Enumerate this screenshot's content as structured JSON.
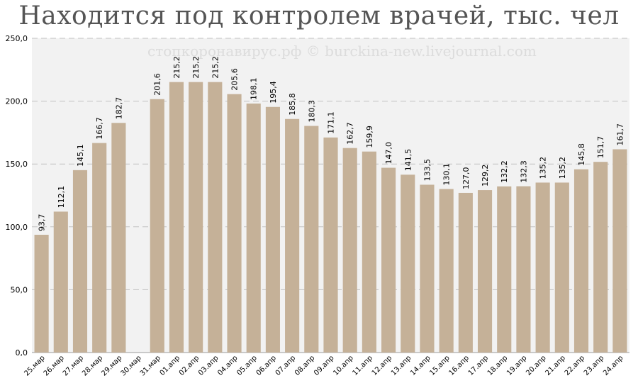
{
  "title": "Находится под контролем врачей, тыс. чел",
  "watermark": "стопкоронавирус.рф © burckina-new.livejournal.com",
  "colors": {
    "bar": "#c5b198",
    "plot_bg": "#f2f2f2",
    "grid": "#c0c0c0",
    "text": "#000000"
  },
  "chart_data": {
    "type": "bar",
    "title": "Находится под контролем врачей, тыс. чел",
    "xlabel": "",
    "ylabel": "",
    "ylim": [
      0,
      250
    ],
    "yticks": [
      "0,0",
      "50,0",
      "100,0",
      "150,0",
      "200,0",
      "250,0"
    ],
    "grid": true,
    "legend": "none",
    "categories": [
      "25.мар",
      "26.мар",
      "27.мар",
      "28.мар",
      "29.мар",
      "30.мар",
      "31.мар",
      "01.апр",
      "02.апр",
      "03.апр",
      "04.апр",
      "05.апр",
      "06.апр",
      "07.апр",
      "08.апр",
      "09.апр",
      "10.апр",
      "11.апр",
      "12.апр",
      "13.апр",
      "14.апр",
      "15.апр",
      "16.апр",
      "17.апр",
      "18.апр",
      "19.апр",
      "20.апр",
      "21.апр",
      "22.апр",
      "23.апр",
      "24.апр"
    ],
    "values": [
      93.7,
      112.1,
      145.1,
      166.7,
      182.7,
      null,
      201.6,
      215.2,
      215.2,
      215.2,
      205.6,
      198.1,
      195.4,
      185.8,
      180.3,
      171.1,
      162.7,
      159.9,
      147.0,
      141.5,
      133.5,
      130.1,
      127.0,
      129.2,
      132.2,
      132.3,
      135.2,
      135.2,
      145.8,
      151.7,
      161.7
    ],
    "labels": [
      "93,7",
      "112,1",
      "145,1",
      "166,7",
      "182,7",
      "",
      "201,6",
      "215,2",
      "215,2",
      "215,2",
      "205,6",
      "198,1",
      "195,4",
      "185,8",
      "180,3",
      "171,1",
      "162,7",
      "159,9",
      "147,0",
      "141,5",
      "133,5",
      "130,1",
      "127,0",
      "129,2",
      "132,2",
      "132,3",
      "135,2",
      "135,2",
      "145,8",
      "151,7",
      "161,7"
    ]
  }
}
